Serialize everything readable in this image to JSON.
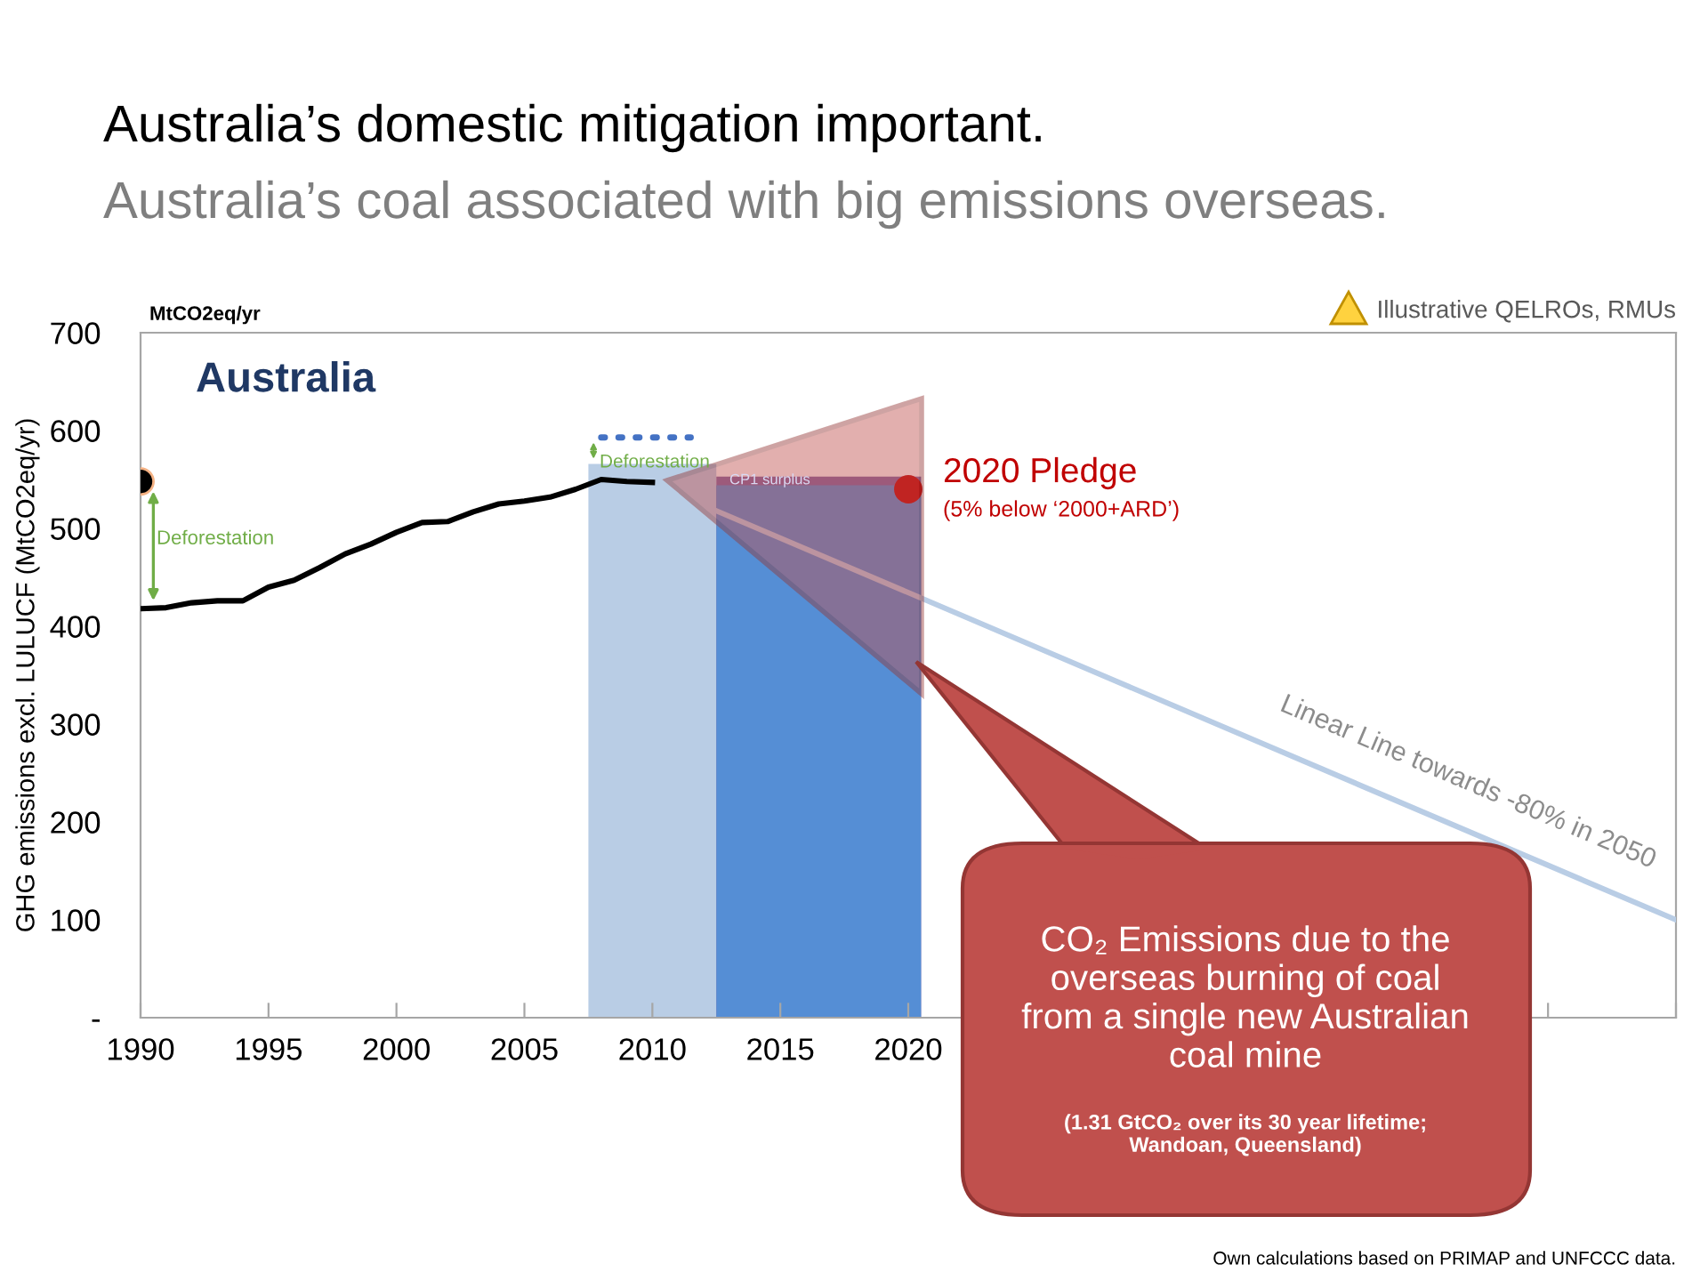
{
  "chart_data": {
    "type": "line",
    "title": "Australia’s domestic mitigation important.",
    "subtitle": "Australia’s coal associated with big emissions overseas.",
    "ylabel": "GHG emissions excl. LULUCF (MtCO2eq/yr)",
    "xlim": [
      1990,
      2050
    ],
    "ylim": [
      0,
      700
    ],
    "xticks": [
      1990,
      1995,
      2000,
      2005,
      2010,
      2015,
      2020,
      {
        "value": 2025,
        "label": null
      },
      {
        "value": 2030,
        "label": null
      },
      {
        "value": 2035,
        "label": null
      },
      {
        "value": 2040,
        "label": null
      },
      {
        "value": 2045,
        "label": null
      },
      {
        "value": 2050,
        "label": null
      }
    ],
    "yticks": [
      {
        "value": 0,
        "label": "-"
      },
      100,
      200,
      300,
      400,
      500,
      600,
      700
    ],
    "grid": false,
    "legend": false,
    "series": [
      {
        "color": "#000000",
        "x": [
          1990,
          1991,
          1992,
          1993,
          1994,
          1995,
          1996,
          1997,
          1998,
          1999,
          2000,
          2001,
          2002,
          2003,
          2004,
          2005,
          2006,
          2007,
          2008,
          2009,
          2010
        ],
        "values": [
          418,
          419,
          424,
          426,
          426,
          440,
          447,
          460,
          474,
          484,
          496,
          506,
          507,
          517,
          525,
          528,
          532,
          540,
          550,
          548,
          547
        ]
      },
      {
        "type": "scatter",
        "color": "#000000",
        "x": [
          1990
        ],
        "values": [
          548
        ],
        "marker": "circle"
      },
      {
        "color": "#4472c4",
        "x": [
          2008,
          2011.5
        ],
        "values": [
          593,
          593
        ],
        "line_style": "dotted"
      },
      {
        "type": "area",
        "color": "#b9cde5",
        "x": [
          2007.5,
          2012.5
        ],
        "values": [
          566,
          566
        ]
      },
      {
        "type": "area",
        "color": "#8064a2",
        "x": [
          2012.5,
          2020.5
        ],
        "values": [
          553,
          553
        ]
      },
      {
        "type": "area",
        "color": "#558ed5",
        "x": [
          2012.5,
          2020.5
        ],
        "values": [
          544,
          544
        ]
      },
      {
        "color": "#b9cde5",
        "x": [
          2012.5,
          2050
        ],
        "values": [
          518,
          100
        ]
      },
      {
        "type": "scatter",
        "color": "#c00000",
        "x": [
          2020
        ],
        "values": [
          540
        ],
        "marker": "circle"
      }
    ],
    "annotations": [
      "MtCO2eq/yr",
      "Australia",
      "Illustrative QELROs, RMUs",
      "CO₂ Emissions due to the\noverseas burning of coal\nfrom a single new Australian\ncoal mine",
      "(1.31 GtCO₂ over its 30 year lifetime;\nWandoan, Queensland)",
      "Own calculations based on PRIMAP and UNFCCC data.",
      "Deforestation",
      "Deforestation",
      "CP1 surplus",
      "2020 Pledge",
      "(5% below ‘2000+ARD’)",
      "Linear Line towards -80% in 2050"
    ]
  }
}
